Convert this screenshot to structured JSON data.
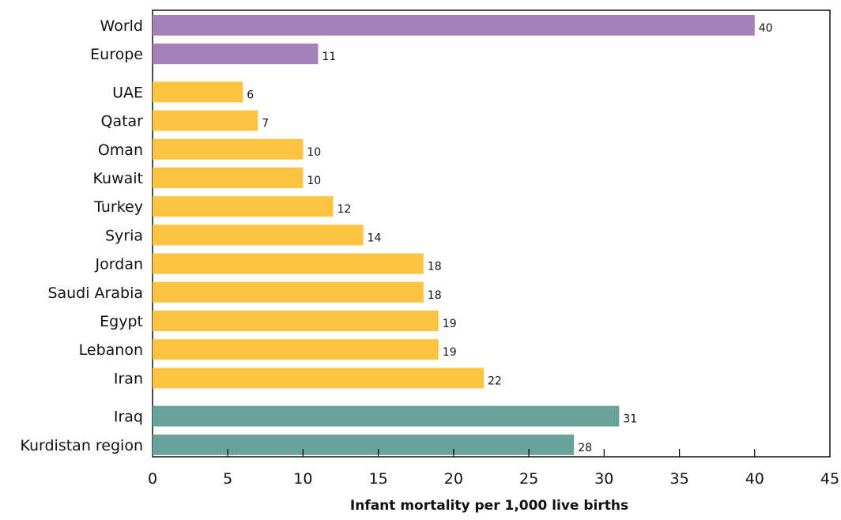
{
  "chart_data": {
    "type": "bar",
    "orientation": "horizontal",
    "xlabel": "Infant mortality per 1,000 live births",
    "ylabel": "",
    "xlim": [
      0,
      45
    ],
    "x_ticks": [
      0,
      5,
      10,
      15,
      20,
      25,
      30,
      35,
      40,
      45
    ],
    "grid": false,
    "legend": "none",
    "categories": [
      "World",
      "Europe",
      "UAE",
      "Qatar",
      "Oman",
      "Kuwait",
      "Turkey",
      "Syria",
      "Jordan",
      "Saudi Arabia",
      "Egypt",
      "Lebanon",
      "Iran",
      "Iraq",
      "Kurdistan region"
    ],
    "values": [
      40,
      11,
      6,
      7,
      10,
      10,
      12,
      14,
      18,
      18,
      19,
      19,
      22,
      31,
      28
    ],
    "data_labels": [
      "40",
      "11",
      "6",
      "7",
      "10",
      "10",
      "12",
      "14",
      "18",
      "18",
      "19",
      "19",
      "22",
      "31",
      "28"
    ],
    "groups": [
      {
        "members": [
          "World",
          "Europe"
        ],
        "color": "#a580b8"
      },
      {
        "members": [
          "UAE",
          "Qatar",
          "Oman",
          "Kuwait",
          "Turkey",
          "Syria",
          "Jordan",
          "Saudi Arabia",
          "Egypt",
          "Lebanon",
          "Iran"
        ],
        "color": "#fec341"
      },
      {
        "members": [
          "Iraq",
          "Kurdistan region"
        ],
        "color": "#67a29b"
      }
    ]
  }
}
